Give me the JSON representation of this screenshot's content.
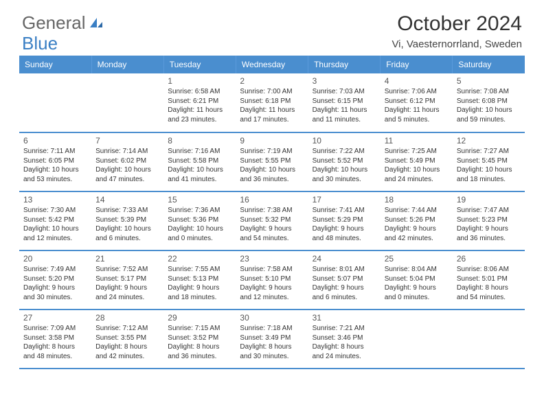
{
  "brand": {
    "part1": "General",
    "part2": "Blue"
  },
  "title": "October 2024",
  "location": "Vi, Vaesternorrland, Sweden",
  "colors": {
    "header_bg": "#4a8ecf",
    "header_text": "#ffffff",
    "border": "#4a8ecf",
    "logo_gray": "#666666",
    "logo_blue": "#3a7fc4"
  },
  "weekdays": [
    "Sunday",
    "Monday",
    "Tuesday",
    "Wednesday",
    "Thursday",
    "Friday",
    "Saturday"
  ],
  "weeks": [
    [
      null,
      null,
      {
        "n": "1",
        "sr": "Sunrise: 6:58 AM",
        "ss": "Sunset: 6:21 PM",
        "dl": "Daylight: 11 hours and 23 minutes."
      },
      {
        "n": "2",
        "sr": "Sunrise: 7:00 AM",
        "ss": "Sunset: 6:18 PM",
        "dl": "Daylight: 11 hours and 17 minutes."
      },
      {
        "n": "3",
        "sr": "Sunrise: 7:03 AM",
        "ss": "Sunset: 6:15 PM",
        "dl": "Daylight: 11 hours and 11 minutes."
      },
      {
        "n": "4",
        "sr": "Sunrise: 7:06 AM",
        "ss": "Sunset: 6:12 PM",
        "dl": "Daylight: 11 hours and 5 minutes."
      },
      {
        "n": "5",
        "sr": "Sunrise: 7:08 AM",
        "ss": "Sunset: 6:08 PM",
        "dl": "Daylight: 10 hours and 59 minutes."
      }
    ],
    [
      {
        "n": "6",
        "sr": "Sunrise: 7:11 AM",
        "ss": "Sunset: 6:05 PM",
        "dl": "Daylight: 10 hours and 53 minutes."
      },
      {
        "n": "7",
        "sr": "Sunrise: 7:14 AM",
        "ss": "Sunset: 6:02 PM",
        "dl": "Daylight: 10 hours and 47 minutes."
      },
      {
        "n": "8",
        "sr": "Sunrise: 7:16 AM",
        "ss": "Sunset: 5:58 PM",
        "dl": "Daylight: 10 hours and 41 minutes."
      },
      {
        "n": "9",
        "sr": "Sunrise: 7:19 AM",
        "ss": "Sunset: 5:55 PM",
        "dl": "Daylight: 10 hours and 36 minutes."
      },
      {
        "n": "10",
        "sr": "Sunrise: 7:22 AM",
        "ss": "Sunset: 5:52 PM",
        "dl": "Daylight: 10 hours and 30 minutes."
      },
      {
        "n": "11",
        "sr": "Sunrise: 7:25 AM",
        "ss": "Sunset: 5:49 PM",
        "dl": "Daylight: 10 hours and 24 minutes."
      },
      {
        "n": "12",
        "sr": "Sunrise: 7:27 AM",
        "ss": "Sunset: 5:45 PM",
        "dl": "Daylight: 10 hours and 18 minutes."
      }
    ],
    [
      {
        "n": "13",
        "sr": "Sunrise: 7:30 AM",
        "ss": "Sunset: 5:42 PM",
        "dl": "Daylight: 10 hours and 12 minutes."
      },
      {
        "n": "14",
        "sr": "Sunrise: 7:33 AM",
        "ss": "Sunset: 5:39 PM",
        "dl": "Daylight: 10 hours and 6 minutes."
      },
      {
        "n": "15",
        "sr": "Sunrise: 7:36 AM",
        "ss": "Sunset: 5:36 PM",
        "dl": "Daylight: 10 hours and 0 minutes."
      },
      {
        "n": "16",
        "sr": "Sunrise: 7:38 AM",
        "ss": "Sunset: 5:32 PM",
        "dl": "Daylight: 9 hours and 54 minutes."
      },
      {
        "n": "17",
        "sr": "Sunrise: 7:41 AM",
        "ss": "Sunset: 5:29 PM",
        "dl": "Daylight: 9 hours and 48 minutes."
      },
      {
        "n": "18",
        "sr": "Sunrise: 7:44 AM",
        "ss": "Sunset: 5:26 PM",
        "dl": "Daylight: 9 hours and 42 minutes."
      },
      {
        "n": "19",
        "sr": "Sunrise: 7:47 AM",
        "ss": "Sunset: 5:23 PM",
        "dl": "Daylight: 9 hours and 36 minutes."
      }
    ],
    [
      {
        "n": "20",
        "sr": "Sunrise: 7:49 AM",
        "ss": "Sunset: 5:20 PM",
        "dl": "Daylight: 9 hours and 30 minutes."
      },
      {
        "n": "21",
        "sr": "Sunrise: 7:52 AM",
        "ss": "Sunset: 5:17 PM",
        "dl": "Daylight: 9 hours and 24 minutes."
      },
      {
        "n": "22",
        "sr": "Sunrise: 7:55 AM",
        "ss": "Sunset: 5:13 PM",
        "dl": "Daylight: 9 hours and 18 minutes."
      },
      {
        "n": "23",
        "sr": "Sunrise: 7:58 AM",
        "ss": "Sunset: 5:10 PM",
        "dl": "Daylight: 9 hours and 12 minutes."
      },
      {
        "n": "24",
        "sr": "Sunrise: 8:01 AM",
        "ss": "Sunset: 5:07 PM",
        "dl": "Daylight: 9 hours and 6 minutes."
      },
      {
        "n": "25",
        "sr": "Sunrise: 8:04 AM",
        "ss": "Sunset: 5:04 PM",
        "dl": "Daylight: 9 hours and 0 minutes."
      },
      {
        "n": "26",
        "sr": "Sunrise: 8:06 AM",
        "ss": "Sunset: 5:01 PM",
        "dl": "Daylight: 8 hours and 54 minutes."
      }
    ],
    [
      {
        "n": "27",
        "sr": "Sunrise: 7:09 AM",
        "ss": "Sunset: 3:58 PM",
        "dl": "Daylight: 8 hours and 48 minutes."
      },
      {
        "n": "28",
        "sr": "Sunrise: 7:12 AM",
        "ss": "Sunset: 3:55 PM",
        "dl": "Daylight: 8 hours and 42 minutes."
      },
      {
        "n": "29",
        "sr": "Sunrise: 7:15 AM",
        "ss": "Sunset: 3:52 PM",
        "dl": "Daylight: 8 hours and 36 minutes."
      },
      {
        "n": "30",
        "sr": "Sunrise: 7:18 AM",
        "ss": "Sunset: 3:49 PM",
        "dl": "Daylight: 8 hours and 30 minutes."
      },
      {
        "n": "31",
        "sr": "Sunrise: 7:21 AM",
        "ss": "Sunset: 3:46 PM",
        "dl": "Daylight: 8 hours and 24 minutes."
      },
      null,
      null
    ]
  ]
}
